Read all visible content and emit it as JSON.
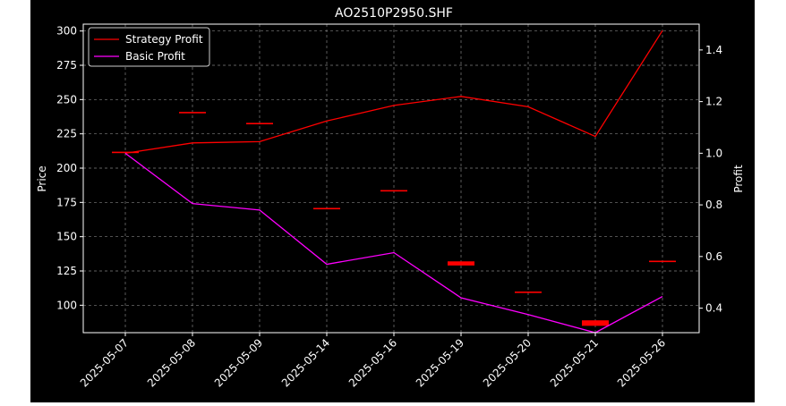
{
  "chart_data": {
    "type": "line",
    "title": "AO2510P2950.SHF",
    "xlabel": "",
    "ylabel": "Price",
    "ylabel_right": "Profit",
    "categories": [
      "2025-05-07",
      "2025-05-08",
      "2025-05-09",
      "2025-05-14",
      "2025-05-16",
      "2025-05-19",
      "2025-05-20",
      "2025-05-21",
      "2025-05-26"
    ],
    "price_candles": [
      {
        "open": 212,
        "close": 212
      },
      {
        "open": 241,
        "close": 241
      },
      {
        "open": 233,
        "close": 233
      },
      {
        "open": 171,
        "close": 171
      },
      {
        "open": 184,
        "close": 184
      },
      {
        "open": 132,
        "close": 129
      },
      {
        "open": 110,
        "close": 110
      },
      {
        "open": 89,
        "close": 85
      },
      {
        "open": 132.5,
        "close": 132.5
      }
    ],
    "series": [
      {
        "name": "Strategy Profit",
        "axis": "right",
        "color": "#ff0000",
        "values": [
          1.0,
          1.04,
          1.045,
          1.125,
          1.185,
          1.22,
          1.18,
          1.065,
          1.475
        ]
      },
      {
        "name": "Basic Profit",
        "axis": "right",
        "color": "#ff00ff",
        "values": [
          1.0,
          0.805,
          0.78,
          0.57,
          0.615,
          0.44,
          0.375,
          0.305,
          0.445
        ]
      }
    ],
    "ylim_left": [
      80,
      305
    ],
    "yticks_left": [
      100,
      125,
      150,
      175,
      200,
      225,
      250,
      275,
      300
    ],
    "ylim_right": [
      0.305,
      1.5
    ],
    "yticks_right": [
      "0.4",
      "0.6",
      "0.8",
      "1.0",
      "1.2",
      "1.4"
    ],
    "legend_position": "top-left",
    "grid": true,
    "colors": {
      "background": "#000000",
      "text": "#ffffff",
      "grid": "#808080",
      "candle": "#ff0000"
    }
  }
}
